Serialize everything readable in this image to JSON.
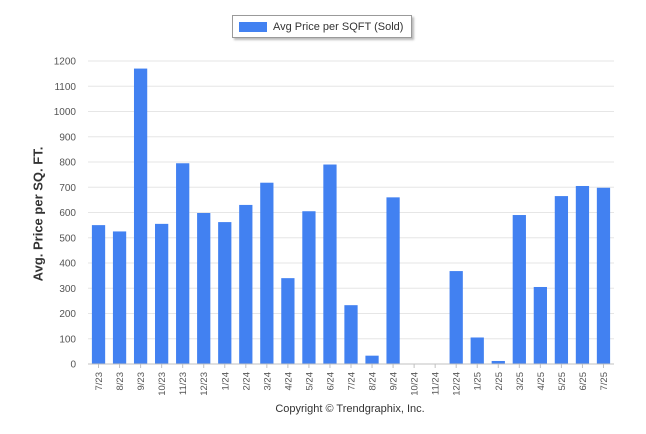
{
  "chart_data": {
    "type": "bar",
    "title": "",
    "xlabel": "",
    "ylabel": "Avg. Price per SQ. FT.",
    "ylim": [
      0,
      1200
    ],
    "yticks": [
      0,
      100,
      200,
      300,
      400,
      500,
      600,
      700,
      800,
      900,
      1000,
      1100,
      1200
    ],
    "categories": [
      "7/23",
      "8/23",
      "9/23",
      "10/23",
      "11/23",
      "12/23",
      "1/24",
      "2/24",
      "3/24",
      "4/24",
      "5/24",
      "6/24",
      "7/24",
      "8/24",
      "9/24",
      "10/24",
      "11/24",
      "12/24",
      "1/25",
      "2/25",
      "3/25",
      "4/25",
      "5/25",
      "6/25",
      "7/25"
    ],
    "series": [
      {
        "name": "Avg Price per SQFT (Sold)",
        "color": "#4281f1",
        "values": [
          550,
          525,
          1170,
          555,
          795,
          598,
          562,
          630,
          718,
          340,
          605,
          790,
          233,
          33,
          660,
          0,
          0,
          368,
          105,
          12,
          590,
          305,
          665,
          705,
          698
        ]
      }
    ],
    "legend": "top-center",
    "grid": true
  },
  "footer": "Copyright © Trendgraphix, Inc."
}
